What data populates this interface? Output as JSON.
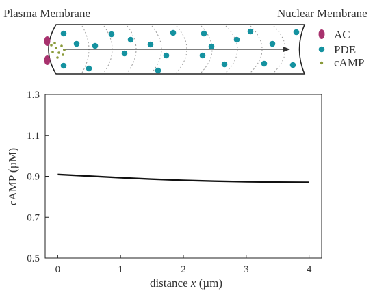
{
  "diagram": {
    "left_label": "Plasma Membrane",
    "right_label": "Nuclear Membrane",
    "legend": [
      {
        "label": "AC",
        "color": "#a8326e",
        "shape": "ellipse"
      },
      {
        "label": "PDE",
        "color": "#1592a0",
        "shape": "circle"
      },
      {
        "label": "cAMP",
        "color": "#8a9a3a",
        "shape": "dot"
      }
    ]
  },
  "chart_data": {
    "type": "line",
    "xlabel_text": "distance ",
    "xlabel_var": "x",
    "xlabel_unit": " (µm)",
    "ylabel": "cAMP (µM)",
    "xlim": [
      -0.2,
      4.2
    ],
    "ylim": [
      0.5,
      1.3
    ],
    "xticks": [
      0,
      1,
      2,
      3,
      4
    ],
    "yticks": [
      0.5,
      0.7,
      0.9,
      1.1,
      1.3
    ],
    "ytick_labels": [
      "0.5",
      "0.7",
      "0.9",
      "1.1",
      "1.3"
    ],
    "series": [
      {
        "color": "#111111",
        "x": [
          0,
          0.5,
          1.0,
          1.5,
          2.0,
          2.5,
          3.0,
          3.5,
          4.0
        ],
        "y": [
          0.909,
          0.901,
          0.893,
          0.886,
          0.88,
          0.876,
          0.873,
          0.871,
          0.87
        ]
      }
    ]
  }
}
